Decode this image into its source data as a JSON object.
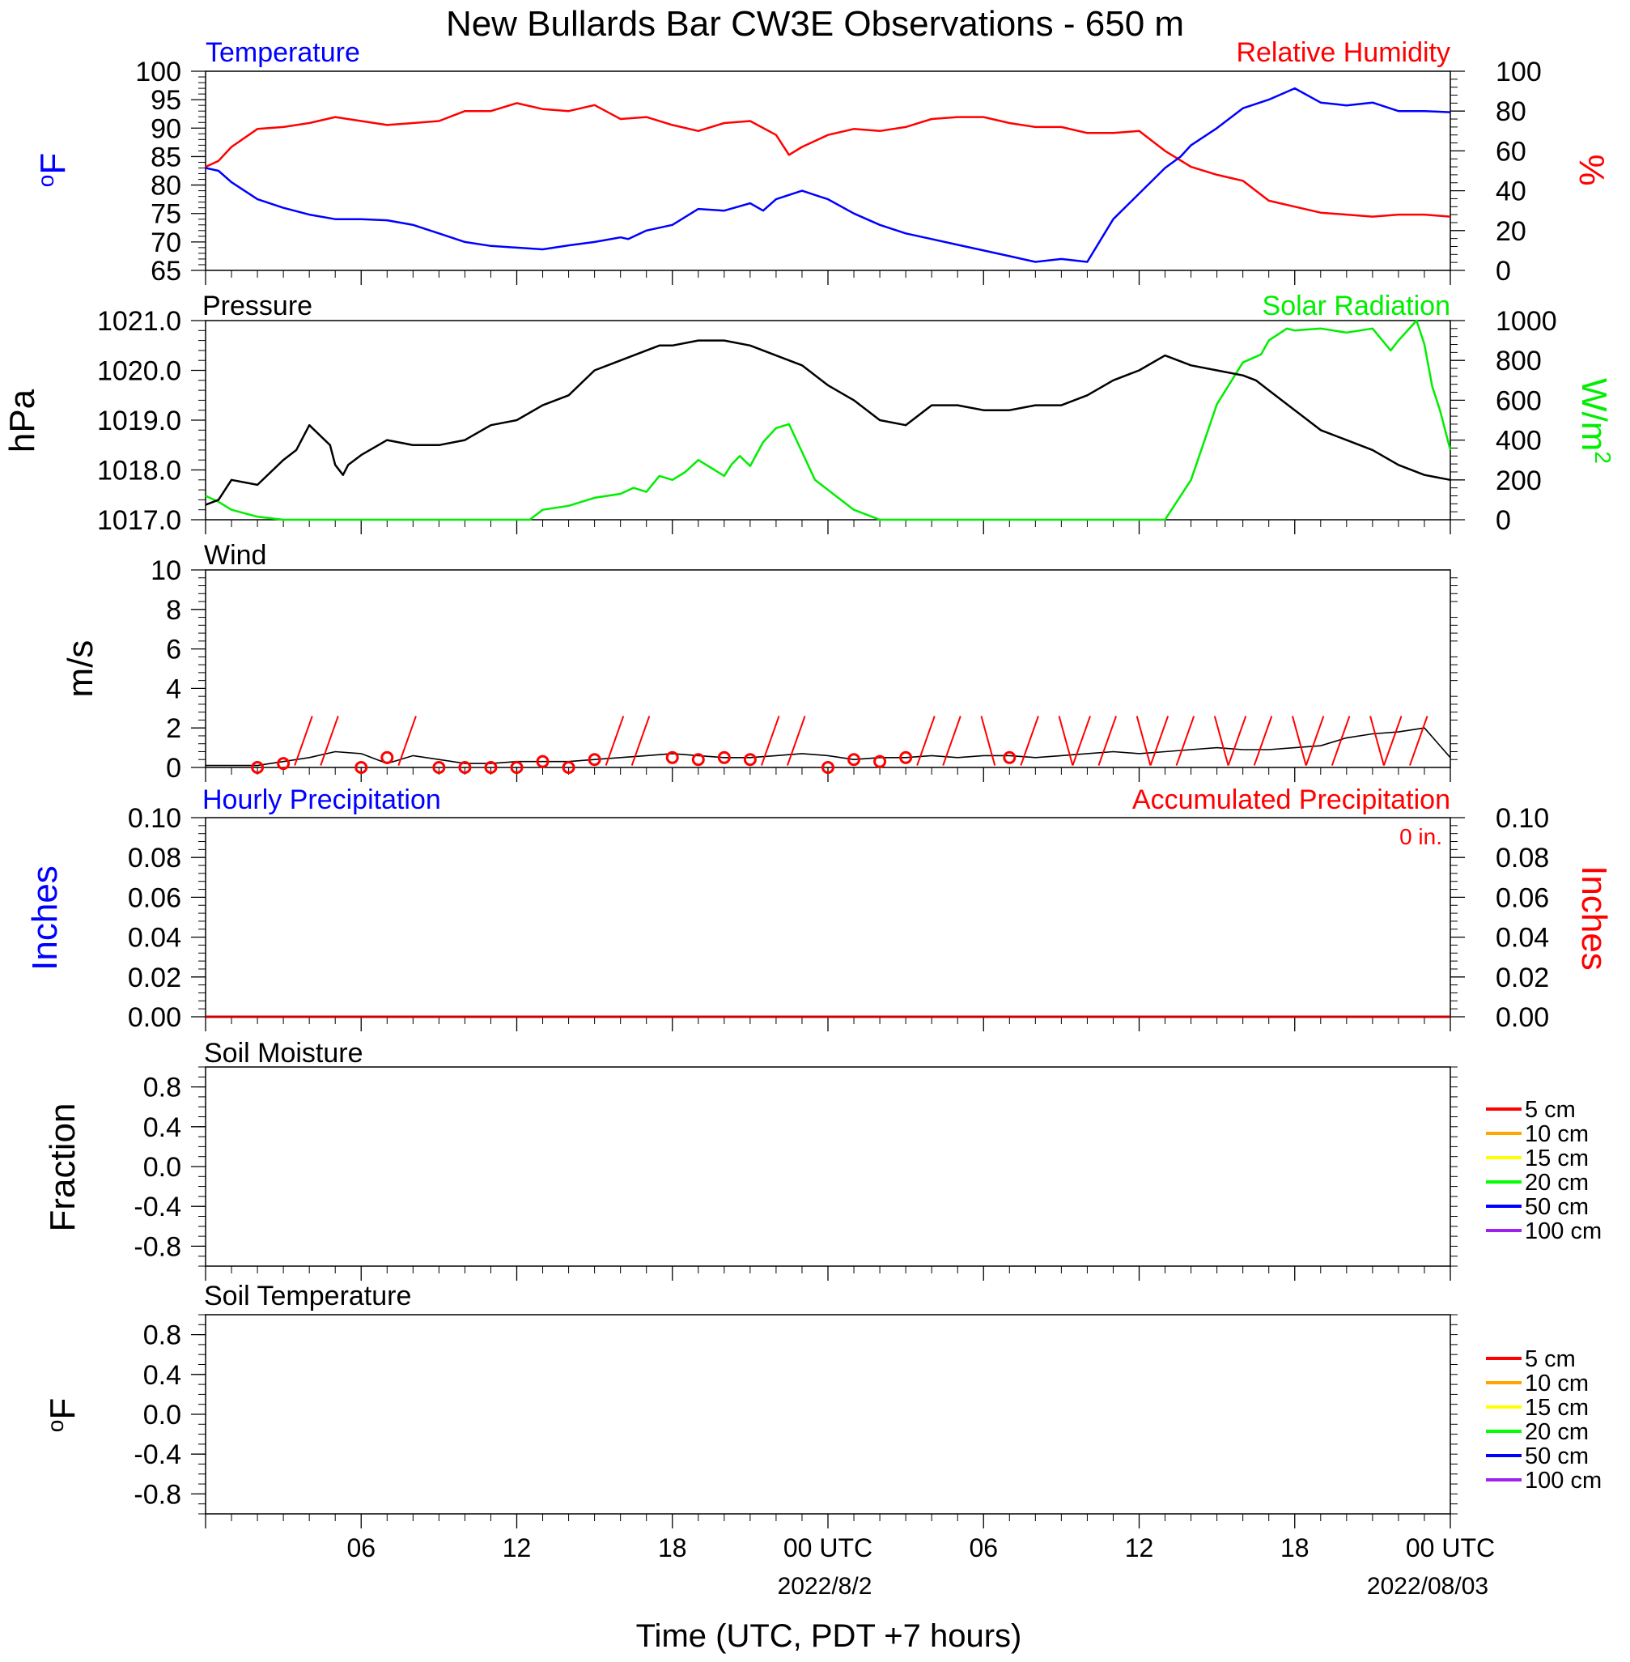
{
  "figure": {
    "title": "New Bullards Bar CW3E Observations - 650 m",
    "xlabel": "Time (UTC, PDT +7 hours)",
    "xticks": [
      "06",
      "12",
      "18",
      "00 UTC",
      "06",
      "12",
      "18",
      "00 UTC"
    ],
    "date_labels": [
      "2022/8/2",
      "2022/08/03"
    ]
  },
  "chart_data": [
    {
      "type": "line",
      "panel": "temperature_humidity",
      "title_left": "Temperature",
      "title_right": "Relative Humidity",
      "ylabel_left": "oF",
      "ylabel_right": "%",
      "ylim_left": [
        65,
        100
      ],
      "ylim_right": [
        0,
        100
      ],
      "yticks_left": [
        "65",
        "70",
        "75",
        "80",
        "85",
        "90",
        "95",
        "100"
      ],
      "yticks_right": [
        "0",
        "20",
        "40",
        "60",
        "80",
        "100"
      ],
      "colors": {
        "left": "#0000ff",
        "right": "#ff0000"
      },
      "series": [
        {
          "name": "Temperature",
          "axis": "left",
          "color": "#0000ff",
          "x": [
            0,
            0.5,
            1,
            2,
            3,
            4,
            5,
            6,
            7,
            8,
            9,
            10,
            11,
            12,
            13,
            14,
            15,
            16,
            16.3,
            17,
            18,
            19,
            20,
            21,
            21.5,
            22,
            23,
            24,
            25,
            26,
            27,
            28,
            29,
            30,
            31,
            32,
            33,
            34,
            35,
            36,
            37,
            37.6,
            38,
            39,
            40,
            41,
            42,
            43,
            44,
            45,
            46,
            47,
            48
          ],
          "y": [
            83,
            82.5,
            80.5,
            77.5,
            76,
            74.8,
            74,
            74,
            73.8,
            73,
            71.5,
            70,
            69.3,
            69,
            68.7,
            69.4,
            70,
            70.8,
            70.5,
            72,
            73,
            75.8,
            75.5,
            76.8,
            75.5,
            77.5,
            79,
            77.5,
            75,
            73,
            71.5,
            70.5,
            69.5,
            68.5,
            67.5,
            66.5,
            67,
            66.5,
            74,
            78.5,
            83,
            85,
            87,
            90,
            93.5,
            95,
            97,
            94.5,
            94,
            94.5,
            93,
            93,
            92.8
          ]
        },
        {
          "name": "Relative Humidity",
          "axis": "right",
          "color": "#ff0000",
          "x": [
            0,
            0.5,
            1,
            2,
            3,
            4,
            5,
            6,
            7,
            8,
            9,
            10,
            11,
            12,
            13,
            14,
            15,
            16,
            17,
            18,
            19,
            20,
            21,
            22,
            22.5,
            23,
            24,
            25,
            26,
            27,
            28,
            29,
            30,
            31,
            32,
            33,
            34,
            35,
            36,
            37,
            38,
            39,
            40,
            41,
            42,
            43,
            44,
            45,
            46,
            47,
            48
          ],
          "y": [
            52,
            55,
            62,
            71,
            72,
            74,
            77,
            75,
            73,
            74,
            75,
            80,
            80,
            84,
            81,
            80,
            83,
            76,
            77,
            73,
            70,
            74,
            75,
            68,
            58,
            62,
            68,
            71,
            70,
            72,
            76,
            77,
            77,
            74,
            72,
            72,
            69,
            69,
            70,
            60,
            52,
            48,
            45,
            35,
            32,
            29,
            28,
            27,
            28,
            28,
            27
          ]
        }
      ]
    },
    {
      "type": "line",
      "panel": "pressure_solar",
      "title_left": "Pressure",
      "title_right": "Solar Radiation",
      "ylabel_left": "hPa",
      "ylabel_right": "W/m2",
      "ylim_left": [
        1017.0,
        1021.0
      ],
      "ylim_right": [
        0,
        1000
      ],
      "yticks_left": [
        "1017.0",
        "1018.0",
        "1019.0",
        "1020.0",
        "1021.0"
      ],
      "yticks_right": [
        "0",
        "200",
        "400",
        "600",
        "800",
        "1000"
      ],
      "colors": {
        "left": "#000000",
        "right": "#00ee00"
      },
      "series": [
        {
          "name": "Pressure",
          "axis": "left",
          "color": "#000000",
          "x": [
            0,
            0.5,
            1,
            2,
            3,
            3.5,
            4,
            4.8,
            5,
            5.3,
            5.5,
            6,
            7,
            8,
            9,
            10,
            11,
            12,
            13,
            14,
            15,
            16,
            17,
            17.5,
            18,
            19,
            20,
            21,
            22,
            23,
            24,
            25,
            26,
            27,
            28,
            29,
            30,
            31,
            32,
            33,
            34,
            35,
            36,
            37,
            38,
            39,
            40,
            40.5,
            41,
            42,
            43,
            44,
            45,
            46,
            47,
            48
          ],
          "y": [
            1017.3,
            1017.4,
            1017.8,
            1017.7,
            1018.2,
            1018.4,
            1018.9,
            1018.5,
            1018.1,
            1017.9,
            1018.1,
            1018.3,
            1018.6,
            1018.5,
            1018.5,
            1018.6,
            1018.9,
            1019.0,
            1019.3,
            1019.5,
            1020.0,
            1020.2,
            1020.4,
            1020.5,
            1020.5,
            1020.6,
            1020.6,
            1020.5,
            1020.3,
            1020.1,
            1019.7,
            1019.4,
            1019.0,
            1018.9,
            1019.3,
            1019.3,
            1019.2,
            1019.2,
            1019.3,
            1019.3,
            1019.5,
            1019.8,
            1020.0,
            1020.3,
            1020.1,
            1020.0,
            1019.9,
            1019.8,
            1019.6,
            1019.2,
            1018.8,
            1018.6,
            1018.4,
            1018.1,
            1017.9,
            1017.8
          ]
        },
        {
          "name": "Solar Radiation",
          "axis": "right",
          "color": "#00ee00",
          "x": [
            0,
            0.5,
            1,
            2,
            3,
            4,
            5,
            6,
            7,
            8,
            9,
            10,
            11,
            12,
            12.5,
            13,
            14,
            15,
            16,
            16.5,
            17,
            17.5,
            18,
            18.5,
            19,
            19.5,
            20,
            20.3,
            20.6,
            21,
            21.5,
            22,
            22.5,
            23,
            23.5,
            24,
            25,
            26,
            27,
            28,
            29,
            30,
            31,
            32,
            33,
            34,
            35,
            35.8,
            37,
            38,
            39,
            40,
            40.7,
            41,
            41.7,
            42,
            43,
            43.5,
            44,
            45,
            45.7,
            46,
            46.7,
            47,
            47.3,
            47.6,
            48
          ],
          "y": [
            120,
            90,
            50,
            15,
            0,
            0,
            0,
            0,
            0,
            0,
            0,
            0,
            0,
            0,
            0,
            50,
            70,
            110,
            130,
            160,
            140,
            220,
            200,
            240,
            300,
            260,
            220,
            280,
            320,
            270,
            390,
            460,
            480,
            340,
            200,
            150,
            50,
            0,
            0,
            0,
            0,
            0,
            0,
            0,
            0,
            0,
            0,
            0,
            0,
            200,
            580,
            790,
            830,
            900,
            960,
            950,
            960,
            950,
            940,
            960,
            850,
            900,
            1000,
            880,
            670,
            550,
            350
          ]
        }
      ]
    },
    {
      "type": "line",
      "panel": "wind",
      "title": "Wind",
      "ylabel": "m/s",
      "ylim": [
        0,
        10
      ],
      "yticks": [
        "0",
        "2",
        "4",
        "6",
        "8",
        "10"
      ],
      "colors": {
        "speed": "#000000",
        "barbs": "#ff0000"
      },
      "series": [
        {
          "name": "Wind speed",
          "color": "#000000",
          "x": [
            0,
            2,
            3,
            4,
            5,
            6,
            7,
            8,
            9,
            10,
            11,
            12,
            13,
            14,
            15,
            16,
            17,
            18,
            19,
            20,
            21,
            22,
            23,
            24,
            25,
            26,
            27,
            28,
            29,
            30,
            31,
            32,
            33,
            34,
            35,
            36,
            37,
            38,
            39,
            40,
            41,
            42,
            43,
            44,
            45,
            46,
            47,
            48
          ],
          "y": [
            0.1,
            0.1,
            0.3,
            0.5,
            0.8,
            0.7,
            0.2,
            0.6,
            0.4,
            0.2,
            0.2,
            0.3,
            0.3,
            0.3,
            0.4,
            0.5,
            0.6,
            0.7,
            0.6,
            0.5,
            0.5,
            0.6,
            0.7,
            0.6,
            0.4,
            0.5,
            0.5,
            0.6,
            0.5,
            0.6,
            0.6,
            0.5,
            0.6,
            0.7,
            0.8,
            0.7,
            0.8,
            0.9,
            1.0,
            0.9,
            0.9,
            1.0,
            1.1,
            1.5,
            1.7,
            1.8,
            2.0,
            0.5
          ]
        },
        {
          "name": "Calm observations",
          "color": "#ff0000",
          "x": [
            2,
            3,
            6,
            7,
            9,
            10,
            11,
            12,
            13,
            14,
            15,
            18,
            19,
            20,
            21,
            24,
            25,
            26,
            27,
            31
          ],
          "y": [
            0.0,
            0.2,
            0.0,
            0.5,
            0.0,
            0.0,
            0.0,
            0.0,
            0.3,
            0.0,
            0.4,
            0.5,
            0.4,
            0.5,
            0.4,
            0.0,
            0.4,
            0.3,
            0.5,
            0.5
          ]
        }
      ]
    },
    {
      "type": "line",
      "panel": "precipitation",
      "title_left": "Hourly Precipitation",
      "title_right": "Accumulated Precipitation",
      "annotation": "0 in.",
      "ylabel_left": "Inches",
      "ylabel_right": "Inches",
      "ylim_left": [
        0,
        0.1
      ],
      "ylim_right": [
        0,
        0.1
      ],
      "yticks_left": [
        "0.00",
        "0.02",
        "0.04",
        "0.06",
        "0.08",
        "0.10"
      ],
      "yticks_right": [
        "0.00",
        "0.02",
        "0.04",
        "0.06",
        "0.08",
        "0.10"
      ],
      "colors": {
        "left": "#0000ff",
        "right": "#ff0000"
      },
      "series": [
        {
          "name": "Accumulated Precipitation",
          "color": "#cc0000",
          "x": [
            0,
            48
          ],
          "y": [
            0,
            0
          ]
        }
      ]
    },
    {
      "type": "line",
      "panel": "soil_moisture",
      "title": "Soil Moisture",
      "ylabel": "Fraction",
      "ylim": [
        -1,
        1
      ],
      "yticks": [
        "-0.8",
        "-0.4",
        "0.0",
        "0.4",
        "0.8"
      ],
      "legend": [
        {
          "name": "5 cm",
          "color": "#ff0000"
        },
        {
          "name": "10 cm",
          "color": "#ffa500"
        },
        {
          "name": "15 cm",
          "color": "#ffff00"
        },
        {
          "name": "20 cm",
          "color": "#00ff00"
        },
        {
          "name": "50 cm",
          "color": "#0000ff"
        },
        {
          "name": "100 cm",
          "color": "#a020f0"
        }
      ]
    },
    {
      "type": "line",
      "panel": "soil_temperature",
      "title": "Soil Temperature",
      "ylabel": "oF",
      "ylim": [
        -1,
        1
      ],
      "yticks": [
        "-0.8",
        "-0.4",
        "0.0",
        "0.4",
        "0.8"
      ],
      "legend": [
        {
          "name": "5 cm",
          "color": "#ff0000"
        },
        {
          "name": "10 cm",
          "color": "#ffa500"
        },
        {
          "name": "15 cm",
          "color": "#ffff00"
        },
        {
          "name": "20 cm",
          "color": "#00ff00"
        },
        {
          "name": "50 cm",
          "color": "#0000ff"
        },
        {
          "name": "100 cm",
          "color": "#a020f0"
        }
      ]
    }
  ]
}
